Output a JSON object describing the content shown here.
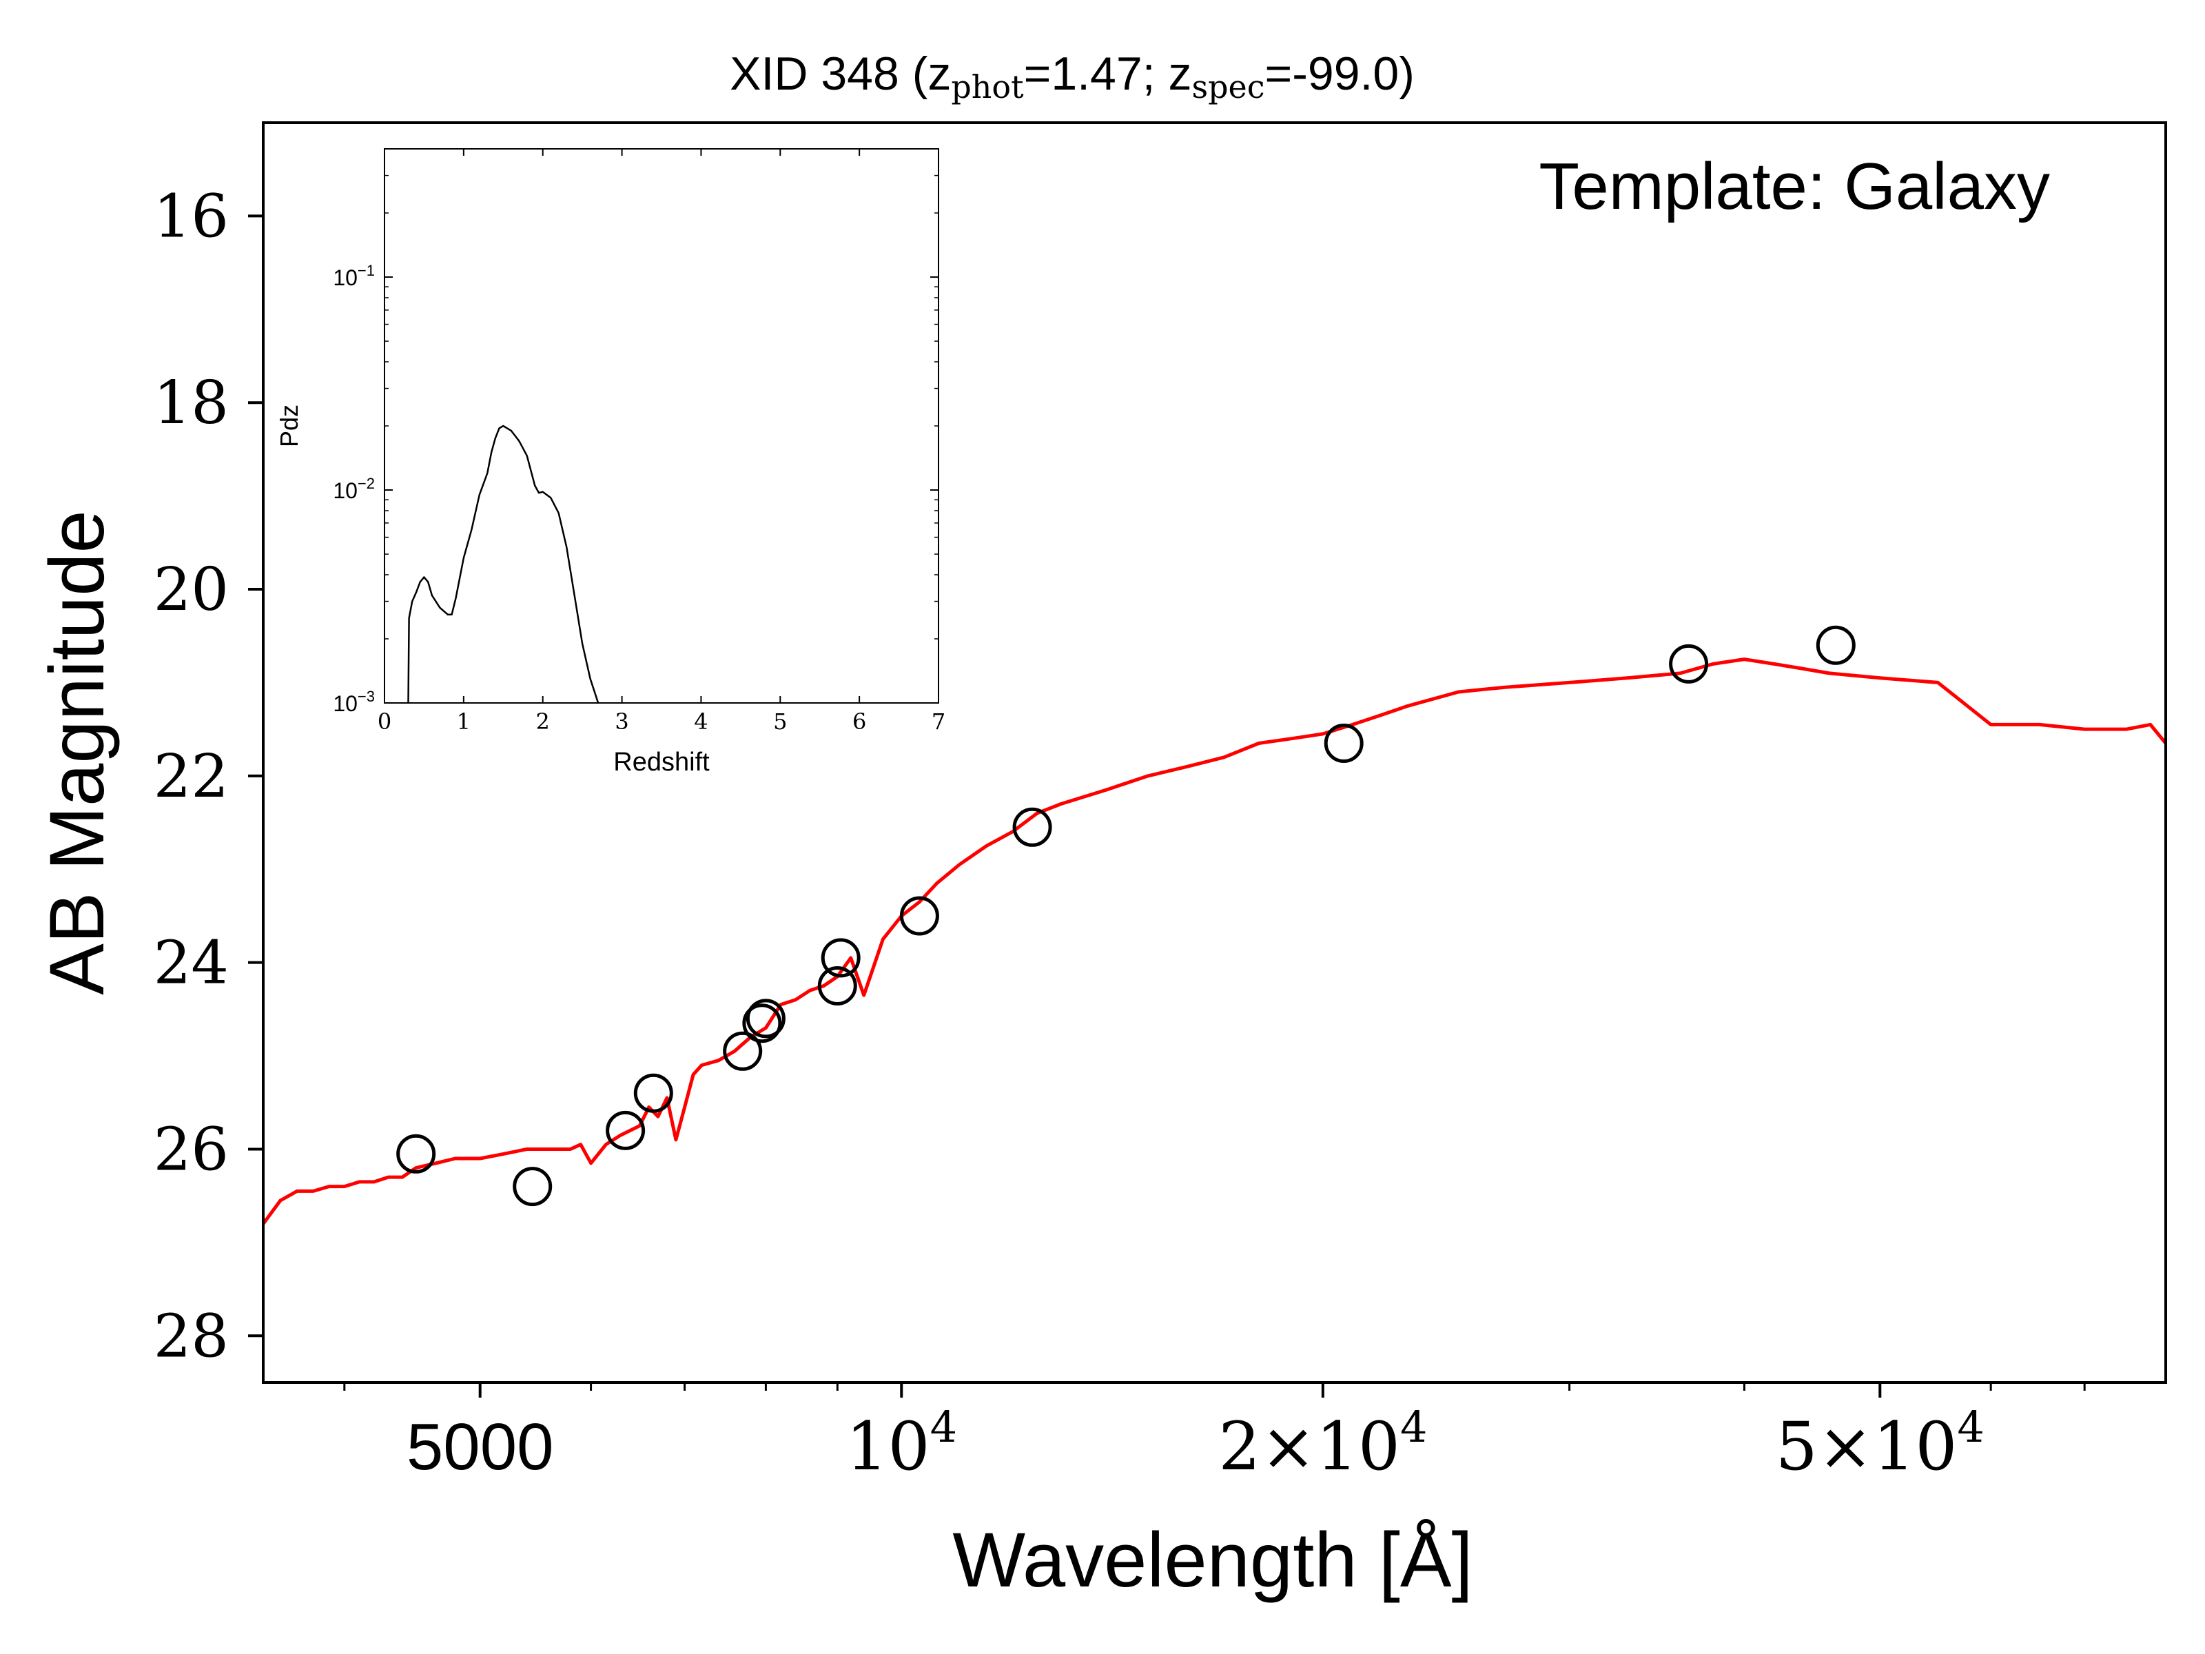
{
  "chart_data": [
    {
      "type": "line",
      "title": {
        "prefix": "XID 348 (",
        "zphot_var": "z",
        "zphot_sub": "phot",
        "zphot_value": "=1.47; ",
        "zspec_var": "z",
        "zspec_sub": "spec",
        "zspec_value": "=-99.0)"
      },
      "annotation": "Template: Galaxy",
      "xlabel": "Wavelength [Å]",
      "ylabel": "AB Magnitude",
      "xscale": "log",
      "xlim": [
        3500,
        80000
      ],
      "ylim": [
        28.5,
        15
      ],
      "y_inverted": true,
      "grid": false,
      "xticks": [
        {
          "value": 5000,
          "label": "5000"
        },
        {
          "value": 10000,
          "base": "10",
          "exp": "4"
        },
        {
          "value": 20000,
          "mant": "2",
          "base": "10",
          "exp": "4"
        },
        {
          "value": 50000,
          "mant": "5",
          "base": "10",
          "exp": "4"
        }
      ],
      "xminor": [
        4000,
        6000,
        7000,
        8000,
        9000,
        30000,
        40000,
        60000,
        70000
      ],
      "yticks": [
        {
          "value": 16,
          "label": "16"
        },
        {
          "value": 18,
          "label": "18"
        },
        {
          "value": 20,
          "label": "20"
        },
        {
          "value": 22,
          "label": "22"
        },
        {
          "value": 24,
          "label": "24"
        },
        {
          "value": 26,
          "label": "26"
        },
        {
          "value": 28,
          "label": "28"
        }
      ],
      "series": [
        {
          "kind": "line",
          "color": "#ff0000",
          "x": [
            3500,
            3600,
            3700,
            3800,
            3900,
            4000,
            4100,
            4200,
            4300,
            4400,
            4500,
            4650,
            4800,
            5000,
            5200,
            5400,
            5600,
            5800,
            5900,
            6000,
            6150,
            6300,
            6500,
            6600,
            6700,
            6800,
            6900,
            7000,
            7100,
            7200,
            7400,
            7600,
            7800,
            8000,
            8200,
            8400,
            8600,
            8800,
            9000,
            9200,
            9400,
            9700,
            10000,
            10300,
            10600,
            11000,
            11500,
            12000,
            12500,
            13000,
            14000,
            15000,
            16000,
            17000,
            18000,
            19000,
            20000,
            21000,
            22000,
            23000,
            25000,
            27000,
            30000,
            33000,
            36000,
            38000,
            40000,
            42000,
            44000,
            46000,
            50000,
            55000,
            60000,
            65000,
            70000,
            75000,
            78000,
            80000
          ],
          "y": [
            26.8,
            26.55,
            26.45,
            26.45,
            26.4,
            26.4,
            26.35,
            26.35,
            26.3,
            26.3,
            26.2,
            26.15,
            26.1,
            26.1,
            26.05,
            26.0,
            26.0,
            26.0,
            25.95,
            26.15,
            25.95,
            25.85,
            25.75,
            25.55,
            25.65,
            25.45,
            25.9,
            25.55,
            25.2,
            25.1,
            25.05,
            24.95,
            24.8,
            24.7,
            24.45,
            24.4,
            24.3,
            24.25,
            24.15,
            23.95,
            24.35,
            23.75,
            23.5,
            23.35,
            23.15,
            22.95,
            22.75,
            22.6,
            22.4,
            22.3,
            22.15,
            22.0,
            21.9,
            21.8,
            21.65,
            21.6,
            21.55,
            21.45,
            21.35,
            21.25,
            21.1,
            21.05,
            21.0,
            20.95,
            20.9,
            20.8,
            20.75,
            20.8,
            20.85,
            20.9,
            20.95,
            21.0,
            21.45,
            21.45,
            21.5,
            21.5,
            21.45,
            21.65
          ]
        },
        {
          "kind": "scatter",
          "marker": "open-circle",
          "color": "#000000",
          "x": [
            4500,
            5450,
            6350,
            6650,
            7700,
            7950,
            8000,
            9000,
            9050,
            10300,
            12400,
            20700,
            36500,
            46500
          ],
          "y": [
            26.05,
            26.4,
            25.8,
            25.4,
            24.95,
            24.65,
            24.6,
            24.25,
            23.95,
            23.5,
            22.55,
            21.65,
            20.8,
            20.6
          ]
        }
      ]
    },
    {
      "type": "line",
      "xlabel": "Redshift",
      "ylabel": "Pdz",
      "xlim": [
        0,
        7
      ],
      "yscale": "log",
      "ylim": [
        0.001,
        0.4
      ],
      "grid": false,
      "xticks": [
        0,
        1,
        2,
        3,
        4,
        5,
        6,
        7
      ],
      "yticks": [
        {
          "value": 0.001,
          "base": "10",
          "exp": "−3"
        },
        {
          "value": 0.01,
          "base": "10",
          "exp": "−2"
        },
        {
          "value": 0.1,
          "base": "10",
          "exp": "−1"
        }
      ],
      "series": [
        {
          "kind": "line",
          "color": "#000000",
          "x": [
            0.3,
            0.31,
            0.35,
            0.4,
            0.45,
            0.5,
            0.55,
            0.6,
            0.7,
            0.8,
            0.85,
            0.9,
            1.0,
            1.1,
            1.2,
            1.3,
            1.35,
            1.4,
            1.45,
            1.5,
            1.55,
            1.6,
            1.7,
            1.8,
            1.9,
            1.95,
            2.0,
            2.1,
            2.2,
            2.3,
            2.4,
            2.5,
            2.6,
            2.7
          ],
          "y": [
            0.001,
            0.0025,
            0.003,
            0.0033,
            0.0037,
            0.0039,
            0.0037,
            0.0032,
            0.0028,
            0.0026,
            0.0026,
            0.0031,
            0.0048,
            0.0065,
            0.0095,
            0.012,
            0.015,
            0.0175,
            0.0195,
            0.02,
            0.0195,
            0.019,
            0.017,
            0.0145,
            0.0105,
            0.0097,
            0.0098,
            0.0092,
            0.0078,
            0.0054,
            0.0032,
            0.0019,
            0.0013,
            0.001
          ]
        }
      ]
    }
  ]
}
